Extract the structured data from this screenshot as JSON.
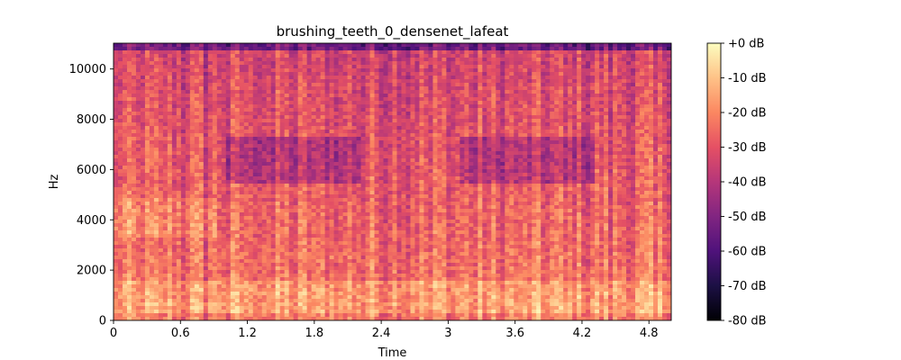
{
  "chart_data": {
    "type": "heatmap",
    "title": "brushing_teeth_0_densenet_lafeat",
    "xlabel": "Time",
    "ylabel": "Hz",
    "xlim": [
      0,
      5.0
    ],
    "ylim": [
      0,
      11025
    ],
    "x_ticks": [
      0,
      0.6,
      1.2,
      1.8,
      2.4,
      3.0,
      3.6,
      4.2,
      4.8
    ],
    "x_tick_labels": [
      "0",
      "0.6",
      "1.2",
      "1.8",
      "2.4",
      "3",
      "3.6",
      "4.2",
      "4.8"
    ],
    "y_ticks": [
      0,
      2000,
      4000,
      6000,
      8000,
      10000
    ],
    "y_tick_labels": [
      "0",
      "2000",
      "4000",
      "6000",
      "8000",
      "10000"
    ],
    "colorbar": {
      "colormap": "magma",
      "range_db": [
        -80,
        0
      ],
      "ticks": [
        0,
        -10,
        -20,
        -30,
        -40,
        -50,
        -60,
        -70,
        -80
      ],
      "tick_labels": [
        "+0 dB",
        "-10 dB",
        "-20 dB",
        "-30 dB",
        "-40 dB",
        "-50 dB",
        "-60 dB",
        "-70 dB",
        "-80 dB"
      ]
    },
    "grid": false
  }
}
